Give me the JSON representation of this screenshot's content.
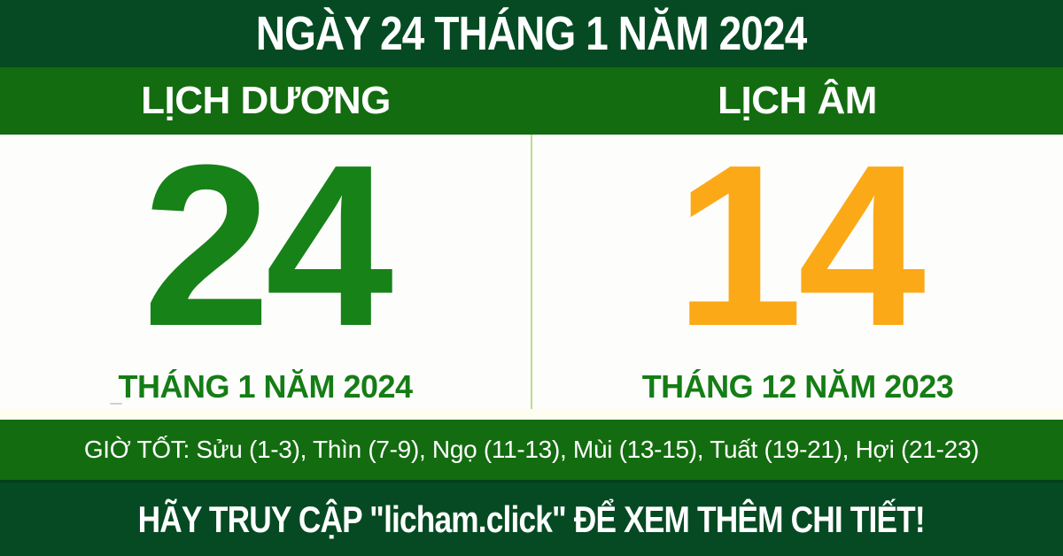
{
  "banner": {
    "title": "NGÀY 24 THÁNG 1 NĂM 2024",
    "good_hours_text": "GIỜ TỐT: Sửu (1-3), Thìn (7-9), Ngọ (11-13), Mùi (13-15), Tuất (19-21), Hợi (21-23)",
    "footer_text": "HÃY TRUY CẬP \"licham.click\" ĐỂ XEM THÊM CHI TIẾT!"
  },
  "solar": {
    "header_label": "LỊCH DƯƠNG",
    "day": "24",
    "month_year_label": "THÁNG 1 NĂM 2024"
  },
  "lunar": {
    "header_label": "LỊCH ÂM",
    "day": "14",
    "month_year_label": "THÁNG 12 NĂM 2023"
  },
  "colors": {
    "dark_green_band": "#054a22",
    "bright_green_band": "#136c0f",
    "solar_day_green": "#178217",
    "lunar_day_orange": "#fca918",
    "month_label_green": "#157d15",
    "divider_light_green": "#b9dc8e",
    "background_white": "#fdfdfb",
    "text_white": "#ffffff"
  }
}
